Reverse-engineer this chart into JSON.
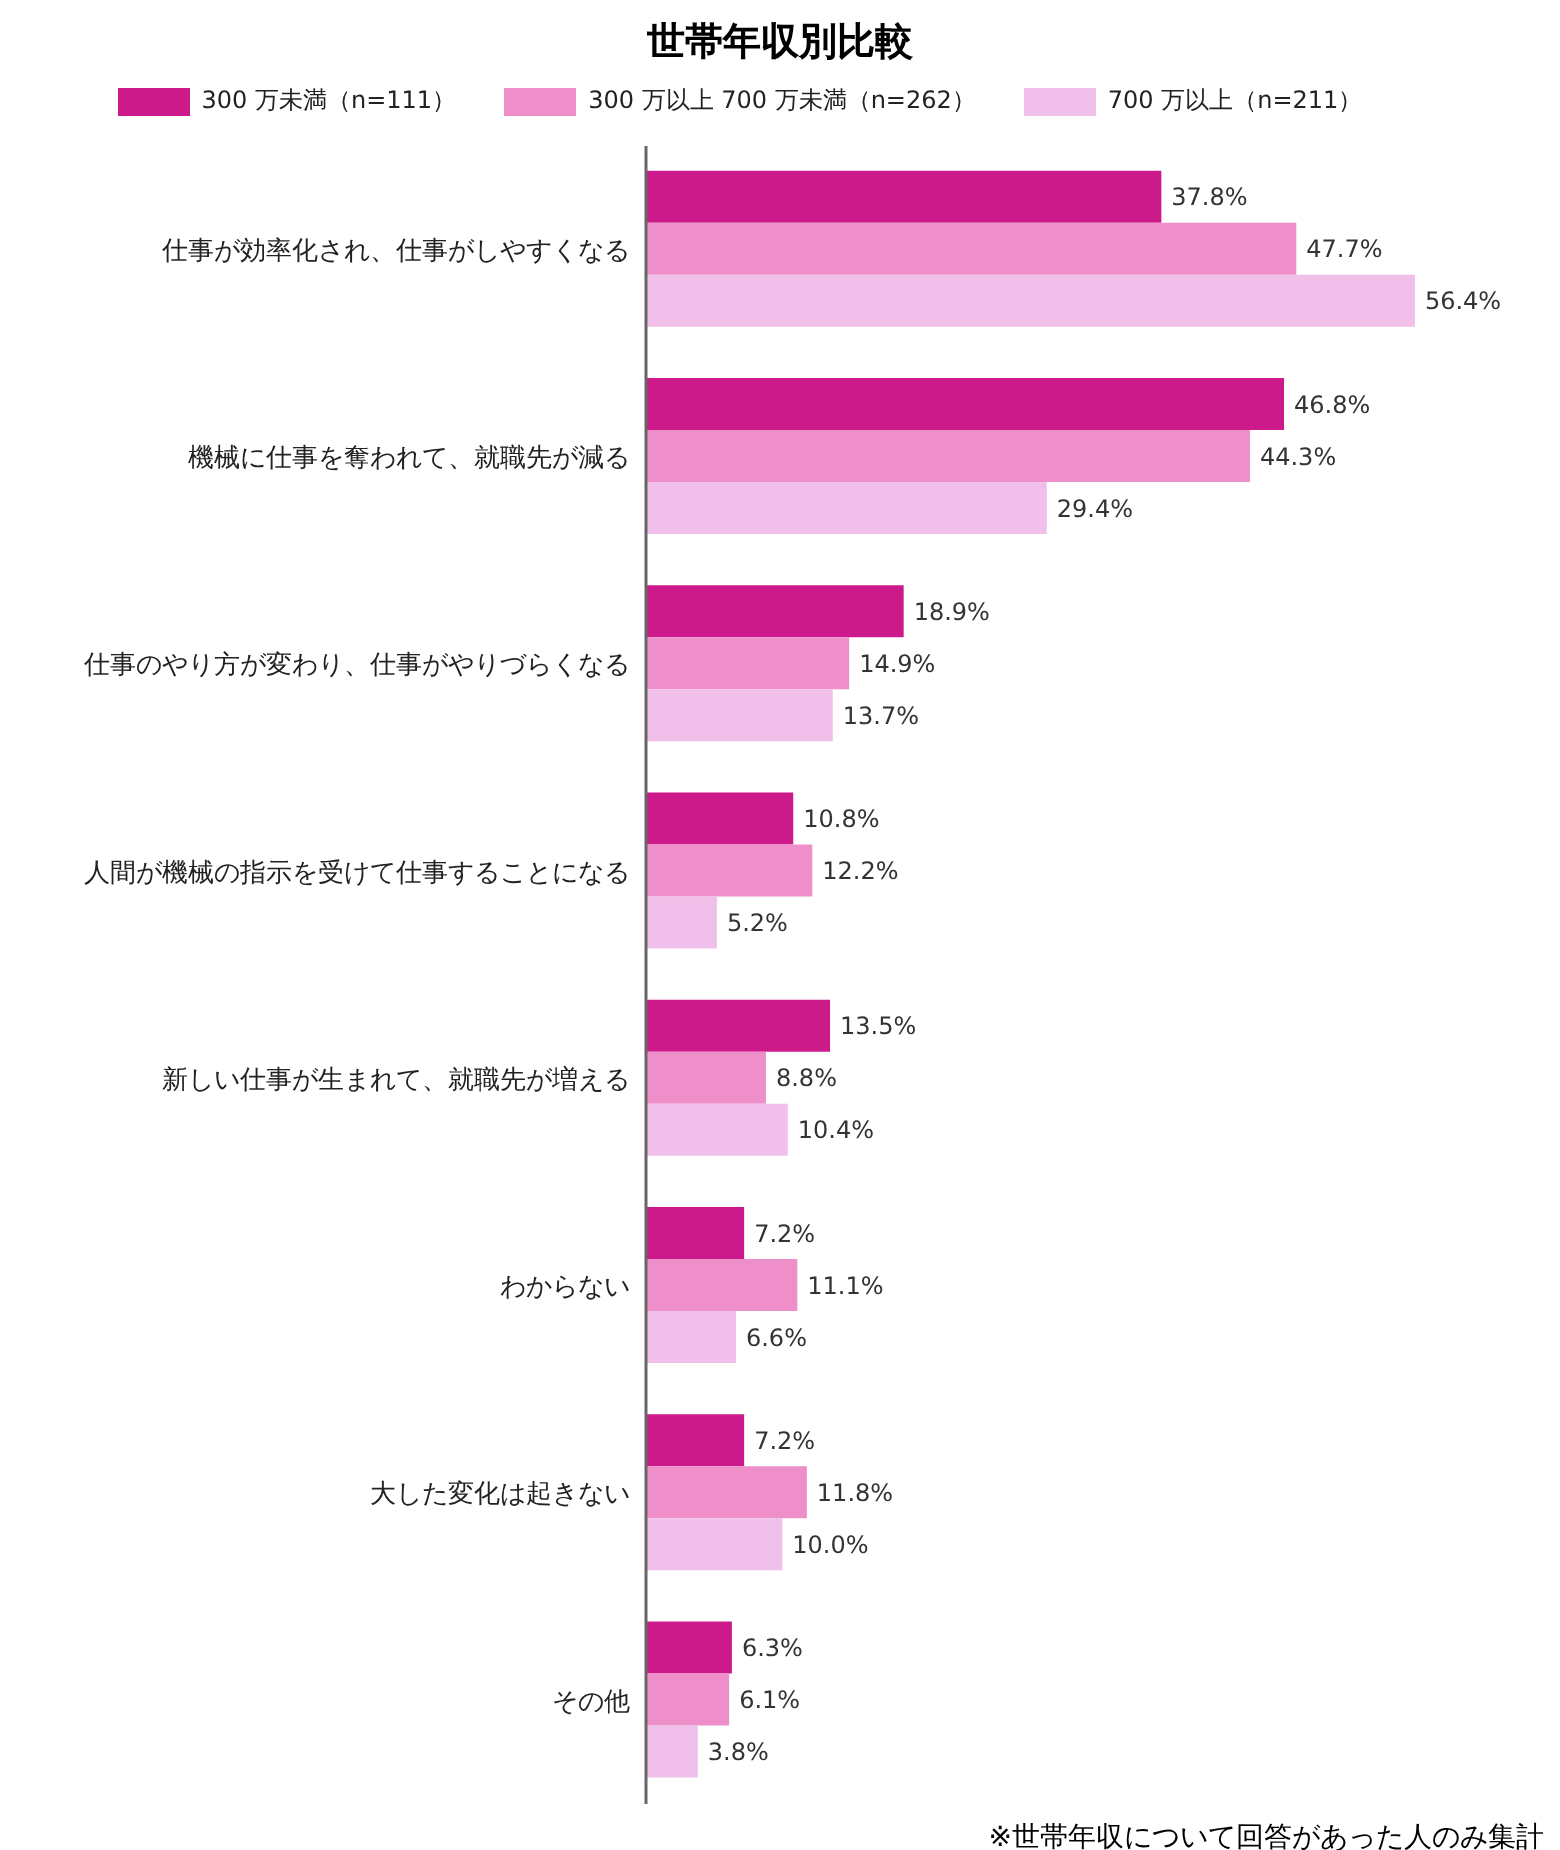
{
  "chart_data": {
    "type": "bar",
    "orientation": "horizontal",
    "title": "世帯年収別比較",
    "categories": [
      "仕事が効率化され、仕事がしやすくなる",
      "機械に仕事を奪われて、就職先が減る",
      "仕事のやり方が変わり、仕事がやりづらくなる",
      "人間が機械の指示を受けて仕事することになる",
      "新しい仕事が生まれて、就職先が増える",
      "わからない",
      "大した変化は起きない",
      "その他"
    ],
    "series": [
      {
        "name": "300 万未満（n=111）",
        "color": "#cc1a8a",
        "values": [
          37.8,
          46.8,
          18.9,
          10.8,
          13.5,
          7.2,
          7.2,
          6.3
        ],
        "value_labels": [
          "37.8%",
          "46.8%",
          "18.9%",
          "10.8%",
          "13.5%",
          "7.2%",
          "7.2%",
          "6.3%"
        ]
      },
      {
        "name": "300 万以上 700 万未満（n=262）",
        "color": "#ee8fca",
        "values": [
          47.7,
          44.3,
          14.9,
          12.2,
          8.8,
          11.1,
          11.8,
          6.1
        ],
        "value_labels": [
          "47.7%",
          "44.3%",
          "14.9%",
          "12.2%",
          "8.8%",
          "11.1%",
          "11.8%",
          "6.1%"
        ]
      },
      {
        "name": "700 万以上（n=211）",
        "color": "#f0c0ea",
        "values": [
          56.4,
          29.4,
          13.7,
          5.2,
          10.4,
          6.6,
          10.0,
          3.8
        ],
        "value_labels": [
          "56.4%",
          "29.4%",
          "13.7%",
          "5.2%",
          "10.4%",
          "6.6%",
          "10.0%",
          "3.8%"
        ]
      }
    ],
    "legend": "top",
    "tick_labels": "y",
    "annotations": [
      "※世帯年収について回答があった人のみ集計"
    ]
  }
}
